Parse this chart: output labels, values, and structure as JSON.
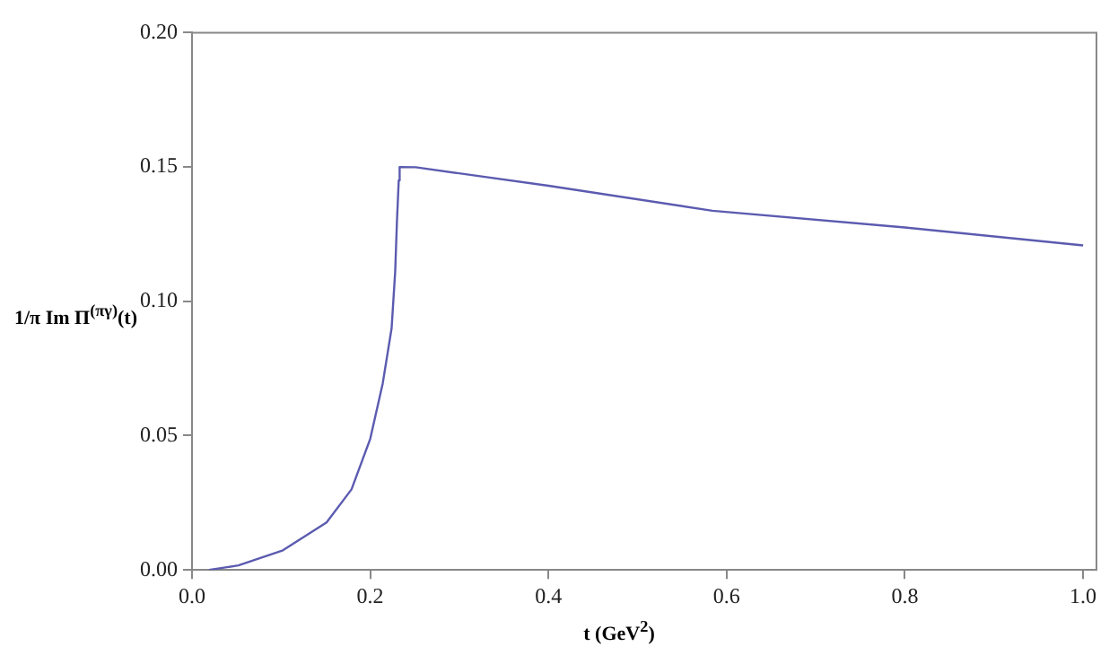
{
  "chart_data": {
    "type": "line",
    "xlabel": "t (GeV$^{2}$)",
    "ylabel": "1/π Im Π$^{(πγ)}$(t)",
    "series": [
      {
        "color": "#5b5bb0",
        "x": [
          0.019,
          0.052,
          0.102,
          0.151,
          0.179,
          0.2,
          0.214,
          0.224,
          0.228,
          0.23,
          0.232,
          0.233,
          0.251,
          0.4,
          0.584,
          0.8,
          1.0
        ],
        "values": [
          0,
          0.0017,
          0.0073,
          0.0177,
          0.03,
          0.0488,
          0.0694,
          0.09,
          0.111,
          0.13,
          0.145,
          0.15,
          0.1499,
          0.143,
          0.1337,
          0.1275,
          0.1208
        ]
      }
    ],
    "xlim": [
      0,
      1.015
    ],
    "xticks": [
      {
        "value": 0,
        "label": "0.0"
      },
      {
        "value": 0.2,
        "label": "0.2"
      },
      {
        "value": 0.4,
        "label": "0.4"
      },
      {
        "value": 0.6,
        "label": "0.6"
      },
      {
        "value": 0.8,
        "label": "0.8"
      },
      {
        "value": 1,
        "label": "1.0"
      }
    ],
    "ylim": [
      0,
      0.2
    ],
    "yticks": [
      {
        "value": 0,
        "label": "0.00"
      },
      {
        "value": 0.05,
        "label": "0.05"
      },
      {
        "value": 0.1,
        "label": "0.10"
      },
      {
        "value": 0.15,
        "label": "0.15"
      },
      {
        "value": 0.2,
        "label": "0.20"
      }
    ],
    "grid": false,
    "legend": false,
    "marker": "none",
    "line_style": "solid"
  }
}
